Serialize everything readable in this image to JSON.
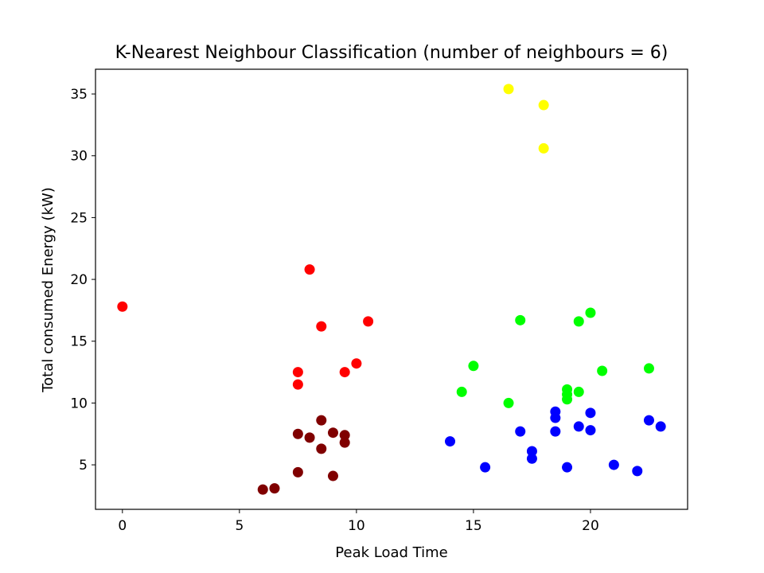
{
  "chart_data": {
    "type": "scatter",
    "title": "K-Nearest Neighbour Classification (number of neighbours = 6)",
    "xlabel": "Peak Load Time",
    "ylabel": "Total consumed Energy (kW)",
    "xlim": [
      -1.15,
      24.15
    ],
    "ylim": [
      1.4,
      37.0
    ],
    "xticks": [
      0,
      5,
      10,
      15,
      20
    ],
    "yticks": [
      5,
      10,
      15,
      20,
      25,
      30,
      35
    ],
    "grid": false,
    "series": [
      {
        "color": "#ff0000",
        "points": [
          [
            0,
            17.8
          ],
          [
            8.0,
            20.8
          ],
          [
            8.5,
            16.2
          ],
          [
            10.5,
            16.6
          ],
          [
            7.5,
            12.5
          ],
          [
            7.5,
            11.5
          ],
          [
            9.5,
            12.5
          ],
          [
            10.0,
            13.2
          ]
        ]
      },
      {
        "color": "#800000",
        "points": [
          [
            8.5,
            8.6
          ],
          [
            7.5,
            7.5
          ],
          [
            8.0,
            7.2
          ],
          [
            9.0,
            7.6
          ],
          [
            9.5,
            7.4
          ],
          [
            9.5,
            6.8
          ],
          [
            8.5,
            6.3
          ],
          [
            7.5,
            4.4
          ],
          [
            9.0,
            4.1
          ],
          [
            6.0,
            3.0
          ],
          [
            6.5,
            3.1
          ]
        ]
      },
      {
        "color": "#ffff00",
        "points": [
          [
            16.5,
            35.4
          ],
          [
            18.0,
            34.1
          ],
          [
            18.0,
            30.6
          ]
        ]
      },
      {
        "color": "#00ff00",
        "points": [
          [
            17.0,
            16.7
          ],
          [
            19.5,
            16.6
          ],
          [
            20.0,
            17.3
          ],
          [
            15.0,
            13.0
          ],
          [
            14.5,
            10.9
          ],
          [
            16.5,
            10.0
          ],
          [
            19.0,
            11.1
          ],
          [
            19.0,
            10.7
          ],
          [
            19.0,
            10.3
          ],
          [
            19.5,
            10.9
          ],
          [
            20.5,
            12.6
          ],
          [
            22.5,
            12.8
          ]
        ]
      },
      {
        "color": "#0000ff",
        "points": [
          [
            14.0,
            6.9
          ],
          [
            15.5,
            4.8
          ],
          [
            17.0,
            7.7
          ],
          [
            17.5,
            6.1
          ],
          [
            17.5,
            5.5
          ],
          [
            18.5,
            9.3
          ],
          [
            18.5,
            8.8
          ],
          [
            18.5,
            7.7
          ],
          [
            19.0,
            4.8
          ],
          [
            19.5,
            8.1
          ],
          [
            20.0,
            9.2
          ],
          [
            20.0,
            7.8
          ],
          [
            21.0,
            5.0
          ],
          [
            22.0,
            4.5
          ],
          [
            22.5,
            8.6
          ],
          [
            23.0,
            8.1
          ]
        ]
      }
    ]
  }
}
